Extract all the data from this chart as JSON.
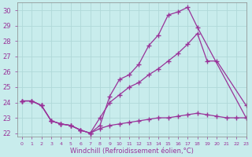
{
  "xlabel": "Windchill (Refroidissement éolien,°C)",
  "xlim": [
    -0.5,
    23
  ],
  "ylim": [
    21.8,
    30.5
  ],
  "yticks": [
    22,
    23,
    24,
    25,
    26,
    27,
    28,
    29,
    30
  ],
  "xticks": [
    0,
    1,
    2,
    3,
    4,
    5,
    6,
    7,
    8,
    9,
    10,
    11,
    12,
    13,
    14,
    15,
    16,
    17,
    18,
    19,
    20,
    21,
    22,
    23
  ],
  "bg_color": "#c8ecec",
  "grid_color": "#b0d8d8",
  "line_color": "#993399",
  "line1_x": [
    0,
    1,
    2,
    3,
    4,
    5,
    6,
    7,
    8,
    9,
    10,
    11,
    12,
    13,
    14,
    15,
    16,
    17,
    18,
    23
  ],
  "line1_y": [
    24.1,
    24.1,
    23.8,
    22.8,
    22.6,
    22.5,
    22.2,
    22.0,
    22.5,
    24.4,
    25.5,
    25.8,
    26.5,
    27.7,
    28.4,
    29.7,
    29.9,
    30.2,
    28.9,
    23.0
  ],
  "line2_x": [
    0,
    1,
    2,
    3,
    4,
    5,
    6,
    7,
    8,
    9,
    10,
    11,
    12,
    13,
    14,
    15,
    16,
    17,
    18,
    19,
    20,
    23
  ],
  "line2_y": [
    24.1,
    24.1,
    23.8,
    22.8,
    22.6,
    22.5,
    22.2,
    22.0,
    23.0,
    24.0,
    24.5,
    25.0,
    25.3,
    25.8,
    26.2,
    26.7,
    27.2,
    27.8,
    28.5,
    26.7,
    26.7,
    23.8
  ],
  "line3_x": [
    0,
    1,
    2,
    3,
    4,
    5,
    6,
    7,
    8,
    9,
    10,
    11,
    12,
    13,
    14,
    15,
    16,
    17,
    18,
    19,
    20,
    21,
    22,
    23
  ],
  "line3_y": [
    24.1,
    24.1,
    23.8,
    22.8,
    22.6,
    22.5,
    22.2,
    22.0,
    22.3,
    22.5,
    22.6,
    22.7,
    22.8,
    22.9,
    23.0,
    23.0,
    23.1,
    23.2,
    23.3,
    23.2,
    23.1,
    23.0,
    23.0,
    23.0
  ]
}
